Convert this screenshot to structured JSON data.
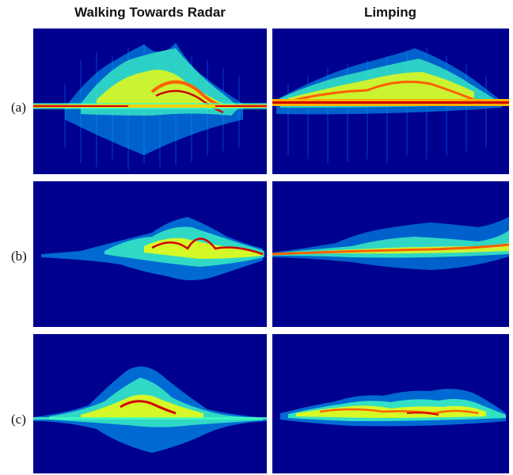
{
  "columns": [
    {
      "title": "Walking Towards Radar"
    },
    {
      "title": "Limping"
    }
  ],
  "rows": [
    {
      "label": "(a)"
    },
    {
      "label": "(b)"
    },
    {
      "label": "(c)"
    }
  ],
  "colors": {
    "background": "#00008f",
    "colormap": [
      "#00008f",
      "#0040ff",
      "#00c0ff",
      "#40ffc0",
      "#ffff00",
      "#ff8000",
      "#d00000"
    ]
  }
}
